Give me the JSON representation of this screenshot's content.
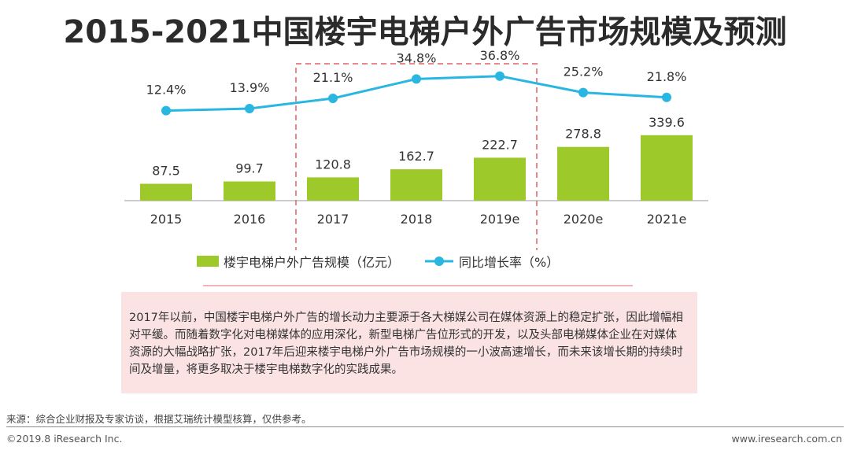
{
  "title": "2015-2021中国楼宇电梯户外广告市场规模及预测",
  "chart_data": {
    "type": "bar+line",
    "categories": [
      "2015",
      "2016",
      "2017",
      "2018",
      "2019e",
      "2020e",
      "2021e"
    ],
    "series": [
      {
        "name": "楼宇电梯户外广告规模（亿元）",
        "type": "bar",
        "values": [
          87.5,
          99.7,
          120.8,
          162.7,
          222.7,
          278.8,
          339.6
        ],
        "labels": [
          "87.5",
          "99.7",
          "120.8",
          "162.7",
          "222.7",
          "278.8",
          "339.6"
        ]
      },
      {
        "name": "同比增长率（%）",
        "type": "line",
        "values": [
          12.4,
          13.9,
          21.1,
          34.8,
          36.8,
          25.2,
          21.8
        ],
        "labels": [
          "12.4%",
          "13.9%",
          "21.1%",
          "34.8%",
          "36.8%",
          "25.2%",
          "21.8%"
        ]
      }
    ],
    "highlight_categories": [
      "2017",
      "2018",
      "2019e"
    ],
    "legend_position": "bottom",
    "grid": false
  },
  "legend": {
    "bar_label": "楼宇电梯户外广告规模（亿元）",
    "line_label": "同比增长率（%）"
  },
  "note": "2017年以前，中国楼宇电梯户外广告的增长动力主要源于各大梯媒公司在媒体资源上的稳定扩张，因此增幅相对平缓。而随着数字化对电梯媒体的应用深化，新型电梯广告位形式的开发，以及头部电梯媒体企业在对媒体资源的大幅战略扩张，2017年后迎来楼宇电梯户外广告市场规模的一小波高速增长，而未来该增长期的持续时间及增量，将更多取决于楼宇电梯数字化的实践成果。",
  "source": "来源：综合企业财报及专家访谈，根据艾瑞统计模型核算，仅供参考。",
  "copyright": "©2019.8 iResearch Inc.",
  "website": "www.iresearch.com.cn",
  "colors": {
    "bar": "#9ec92a",
    "line": "#29b6e0",
    "highlight_border": "#e8878c",
    "note_bg": "#fbe3e4"
  }
}
